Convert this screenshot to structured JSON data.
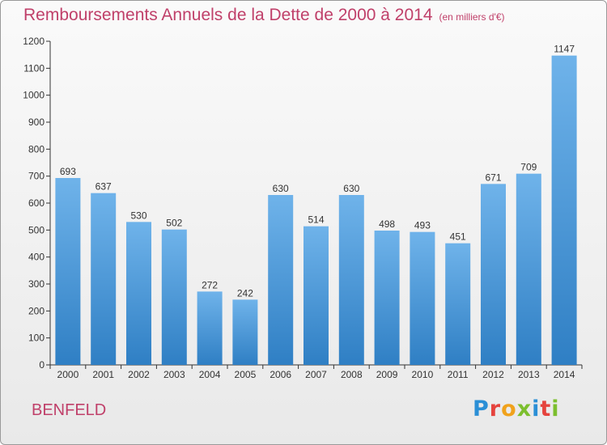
{
  "title": "Remboursements Annuels de la Dette de 2000 à 2014",
  "subtitle": "(en milliers d'€)",
  "commune": "BENFELD",
  "logo_text": "Proxiti",
  "colors": {
    "title": "#c0406a",
    "bar_top": "#6fb3ea",
    "bar_bottom": "#2f7fc4",
    "axis": "#333333"
  },
  "chart_data": {
    "type": "bar",
    "title": "Remboursements Annuels de la Dette de 2000 à 2014",
    "categories": [
      "2000",
      "2001",
      "2002",
      "2003",
      "2004",
      "2005",
      "2006",
      "2007",
      "2008",
      "2009",
      "2010",
      "2011",
      "2012",
      "2013",
      "2014"
    ],
    "values": [
      693,
      637,
      530,
      502,
      272,
      242,
      630,
      514,
      630,
      498,
      493,
      451,
      671,
      709,
      1147
    ],
    "ylim": [
      0,
      1200
    ],
    "yticks": [
      0,
      100,
      200,
      300,
      400,
      500,
      600,
      700,
      800,
      900,
      1000,
      1100,
      1200
    ],
    "grid": false,
    "data_labels": true
  }
}
